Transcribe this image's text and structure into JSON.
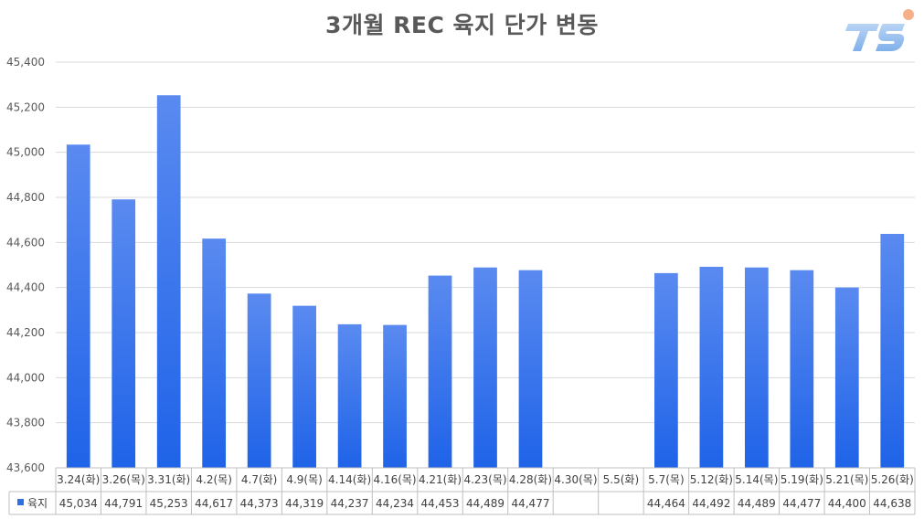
{
  "chart_data": {
    "type": "bar",
    "title": "3개월 REC 육지 단가 변동",
    "categories": [
      "3.24(화)",
      "3.26(목)",
      "3.31(화)",
      "4.2(목)",
      "4.7(화)",
      "4.9(목)",
      "4.14(화)",
      "4.16(목)",
      "4.21(화)",
      "4.23(목)",
      "4.28(화)",
      "4.30(목)",
      "5.5(화)",
      "5.7(목)",
      "5.12(화)",
      "5.14(목)",
      "5.19(화)",
      "5.21(목)",
      "5.26(화)"
    ],
    "series": [
      {
        "name": "육지",
        "values": [
          45034,
          44791,
          45253,
          44617,
          44373,
          44319,
          44237,
          44234,
          44453,
          44489,
          44477,
          null,
          null,
          44464,
          44492,
          44489,
          44477,
          44400,
          44638
        ],
        "labels": [
          "45,034",
          "44,791",
          "45,253",
          "44,617",
          "44,373",
          "44,319",
          "44,237",
          "44,234",
          "44,453",
          "44,489",
          "44,477",
          "",
          "",
          "44,464",
          "44,492",
          "44,489",
          "44,477",
          "44,400",
          "44,638"
        ]
      }
    ],
    "ylim": [
      43600,
      45400
    ],
    "yticks": [
      "45,400",
      "45,200",
      "45,000",
      "44,800",
      "44,600",
      "44,400",
      "44,200",
      "44,000",
      "43,800",
      "43,600"
    ],
    "ytick_values": [
      45400,
      45200,
      45000,
      44800,
      44600,
      44400,
      44200,
      44000,
      43800,
      43600
    ],
    "grid": true,
    "legend": "data-table-left",
    "colors": {
      "bar_top": "#5a8af0",
      "bar_bottom": "#1f63e8",
      "legend_key": "#2f6fe6",
      "grid": "#d9d9d9"
    }
  }
}
